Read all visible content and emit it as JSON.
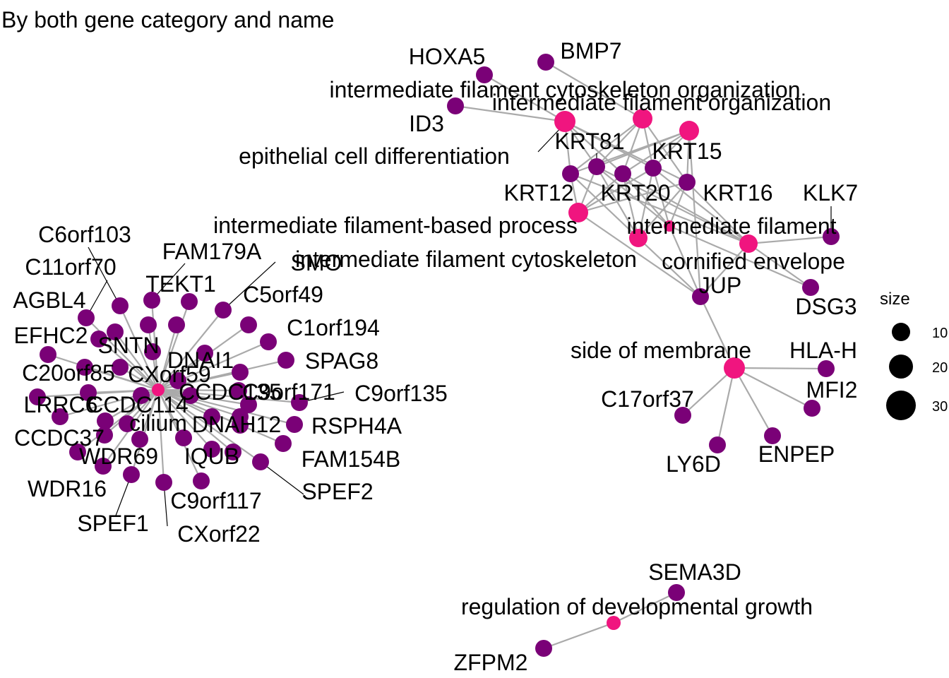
{
  "title": "By both gene category and name",
  "colors": {
    "gene": "#7a0177",
    "category": "#f0157f",
    "edge": "#aaaaaa",
    "leader": "#000000"
  },
  "legend": {
    "title": "size",
    "items": [
      {
        "label": "10",
        "size": 10
      },
      {
        "label": "20",
        "size": 20
      },
      {
        "label": "30",
        "size": 30
      }
    ]
  },
  "categories": [
    "intermediate filament cytoskeleton organization",
    "intermediate filament organization",
    "epithelial cell differentiation",
    "intermediate filament-based process",
    "intermediate filament cytoskeleton",
    "intermediate filament",
    "cornified envelope",
    "side of membrane",
    "regulation of developmental growth",
    "cilium"
  ],
  "genes": [
    "HOXA5",
    "BMP7",
    "ID3",
    "KRT81",
    "KRT15",
    "KRT12",
    "KRT20",
    "KRT16",
    "KLK7",
    "JUP",
    "DSG3",
    "HLA-H",
    "MFI2",
    "C17orf37",
    "LY6D",
    "ENPEP",
    "SEMA3D",
    "ZFPM2",
    "C6orf103",
    "FAM179A",
    "C11orf70",
    "SMO",
    "TEKT1",
    "C5orf49",
    "AGBL4",
    "EFHC2",
    "C1orf194",
    "SNTN",
    "DNAI1",
    "SPAG8",
    "C20orf85",
    "CXorf59",
    "CCDC135",
    "C9orf171",
    "C9orf135",
    "LRRC6",
    "CCDC114",
    "DNAH12",
    "RSPH4A",
    "CCDC37",
    "FAM154B",
    "WDR69",
    "IQUB",
    "SPEF2",
    "WDR16",
    "C9orf117",
    "SPEF1",
    "CXorf22"
  ]
}
